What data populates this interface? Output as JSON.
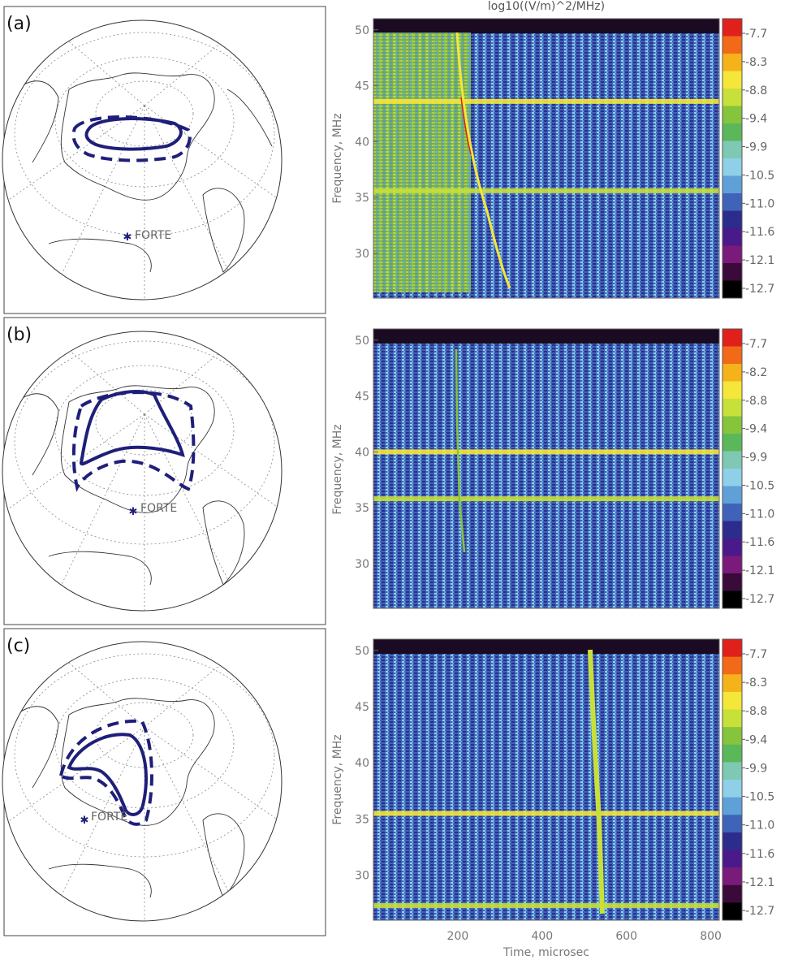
{
  "figure": {
    "colorbar_title": "log10((V/m)^2/MHz)",
    "ylabel": "Frequency, MHz",
    "xlabel": "Time, microsec",
    "x_ticks": [
      "200",
      "400",
      "600",
      "800"
    ],
    "y_ticks": [
      "50",
      "45",
      "40",
      "35",
      "30"
    ],
    "marker_label": "FORTE"
  },
  "colors": {
    "contour": "#1f1f7a",
    "map_line": "#333333",
    "colorbar": [
      "#e0201a",
      "#f26a18",
      "#f5b21a",
      "#f5e63a",
      "#c8e03a",
      "#86c43c",
      "#5ab85a",
      "#7fc8b4",
      "#8fd0e8",
      "#5fa0d8",
      "#3f63b8",
      "#2c2c8c",
      "#4a1a8a",
      "#7a1a7a",
      "#3a0a3a",
      "#000000"
    ]
  },
  "panels": [
    {
      "label": "(a)",
      "cbar_ticks": [
        "-7.7",
        "-8.3",
        "-8.8",
        "-9.4",
        "-9.9",
        "-10.5",
        "-11.0",
        "-11.6",
        "-12.1",
        "-12.7"
      ]
    },
    {
      "label": "(b)",
      "cbar_ticks": [
        "-7.7",
        "-8.2",
        "-8.8",
        "-9.4",
        "-9.9",
        "-10.5",
        "-11.0",
        "-11.6",
        "-12.1",
        "-12.7"
      ]
    },
    {
      "label": "(c)",
      "cbar_ticks": [
        "-7.7",
        "-8.3",
        "-8.8",
        "-9.4",
        "-9.9",
        "-10.5",
        "-11.0",
        "-11.6",
        "-12.1",
        "-12.7"
      ]
    }
  ],
  "chart_data": [
    {
      "type": "heatmap",
      "panel": "(a)",
      "title": "log10((V/m)^2/MHz)",
      "xlabel": "",
      "ylabel": "Frequency, MHz",
      "xlim": [
        0,
        820
      ],
      "ylim": [
        26,
        51
      ],
      "zlim": [
        -12.7,
        -7.7
      ],
      "dispersed_trace": {
        "t_at_50MHz": 205,
        "t_at_27MHz": 330
      },
      "carrier_lines_MHz": [
        43.6,
        35.6
      ]
    },
    {
      "type": "heatmap",
      "panel": "(b)",
      "title": "",
      "xlabel": "",
      "ylabel": "Frequency, MHz",
      "xlim": [
        0,
        820
      ],
      "ylim": [
        26,
        51
      ],
      "zlim": [
        -12.7,
        -7.7
      ],
      "dispersed_trace": {
        "t_at_50MHz": 200,
        "t_at_27MHz": 220
      },
      "carrier_lines_MHz": [
        40.0,
        35.8
      ]
    },
    {
      "type": "heatmap",
      "panel": "(c)",
      "title": "",
      "xlabel": "Time, microsec",
      "ylabel": "Frequency, MHz",
      "xlim": [
        0,
        820
      ],
      "ylim": [
        26,
        51
      ],
      "zlim": [
        -12.7,
        -7.7
      ],
      "dispersed_trace": {
        "t_at_50MHz": 515,
        "t_at_27MHz": 545
      },
      "carrier_lines_MHz": [
        35.5,
        27.3
      ]
    }
  ]
}
